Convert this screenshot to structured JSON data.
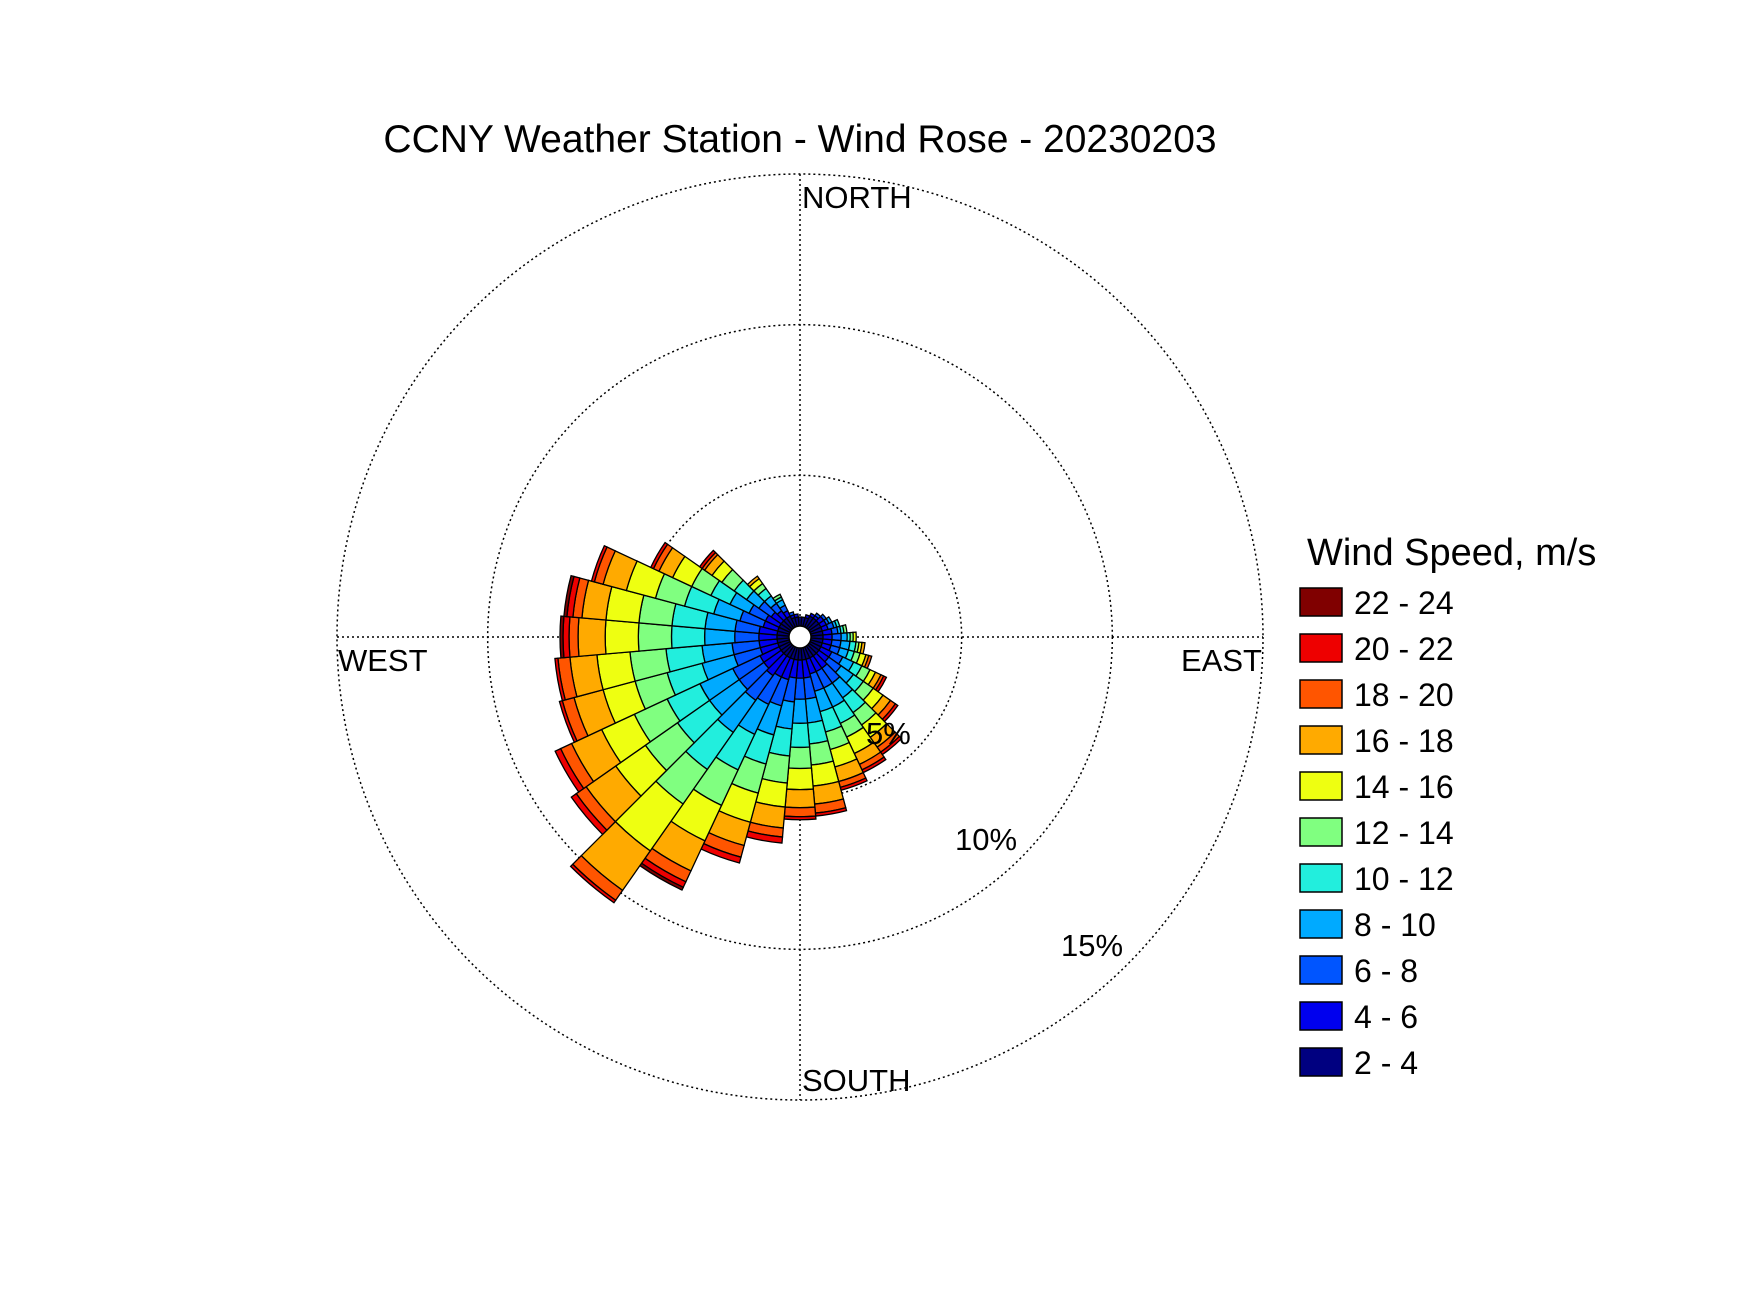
{
  "chart_data": {
    "type": "wind_rose",
    "title": "CCNY Weather Station - Wind Rose - 20230203",
    "direction_labels": [
      "NORTH",
      "EAST",
      "SOUTH",
      "WEST"
    ],
    "radial_ticks": [
      {
        "value": 5,
        "label": "5%"
      },
      {
        "value": 10,
        "label": "10%"
      },
      {
        "value": 15,
        "label": "15%"
      }
    ],
    "radial_max": 15,
    "grid": true,
    "legend": {
      "title": "Wind Speed, m/s",
      "placement": "right",
      "bins": [
        {
          "label": "22 - 24",
          "color": "#800000"
        },
        {
          "label": "20 - 22",
          "color": "#ee0000"
        },
        {
          "label": "18 - 20",
          "color": "#ff5500"
        },
        {
          "label": "16 - 18",
          "color": "#ffaa00"
        },
        {
          "label": "14 - 16",
          "color": "#eeff11"
        },
        {
          "label": "12 - 14",
          "color": "#80ff80"
        },
        {
          "label": "10 - 12",
          "color": "#22eedd"
        },
        {
          "label": "8 - 10",
          "color": "#00aaff"
        },
        {
          "label": "6 - 8",
          "color": "#0055ff"
        },
        {
          "label": "4 - 6",
          "color": "#0000ee"
        },
        {
          "label": "2 - 4",
          "color": "#000080"
        }
      ]
    },
    "stack_order": [
      "2 - 4",
      "4 - 6",
      "6 - 8",
      "8 - 10",
      "10 - 12",
      "12 - 14",
      "14 - 16",
      "16 - 18",
      "18 - 20",
      "20 - 22",
      "22 - 24"
    ],
    "sector_width_deg": 10,
    "sectors": [
      {
        "direction_deg": 0,
        "values": [
          0.3,
          0,
          0,
          0,
          0,
          0,
          0,
          0,
          0,
          0,
          0
        ]
      },
      {
        "direction_deg": 10,
        "values": [
          0.3,
          0,
          0,
          0,
          0,
          0,
          0,
          0,
          0,
          0,
          0
        ]
      },
      {
        "direction_deg": 20,
        "values": [
          0.3,
          0.1,
          0,
          0,
          0,
          0,
          0,
          0,
          0,
          0,
          0
        ]
      },
      {
        "direction_deg": 30,
        "values": [
          0.4,
          0.1,
          0,
          0,
          0,
          0,
          0,
          0,
          0,
          0,
          0
        ]
      },
      {
        "direction_deg": 40,
        "values": [
          0.4,
          0.1,
          0.1,
          0,
          0,
          0,
          0,
          0,
          0,
          0,
          0
        ]
      },
      {
        "direction_deg": 50,
        "values": [
          0.4,
          0.2,
          0.1,
          0,
          0,
          0,
          0,
          0,
          0,
          0,
          0
        ]
      },
      {
        "direction_deg": 60,
        "values": [
          0.4,
          0.2,
          0.1,
          0.1,
          0,
          0,
          0,
          0,
          0,
          0,
          0
        ]
      },
      {
        "direction_deg": 70,
        "values": [
          0.4,
          0.2,
          0.2,
          0.1,
          0.1,
          0,
          0,
          0,
          0,
          0,
          0
        ]
      },
      {
        "direction_deg": 80,
        "values": [
          0.4,
          0.3,
          0.2,
          0.1,
          0.1,
          0.1,
          0,
          0,
          0,
          0,
          0
        ]
      },
      {
        "direction_deg": 90,
        "values": [
          0.4,
          0.3,
          0.3,
          0.2,
          0.1,
          0.1,
          0.1,
          0,
          0,
          0,
          0
        ]
      },
      {
        "direction_deg": 100,
        "values": [
          0.4,
          0.3,
          0.3,
          0.3,
          0.2,
          0.1,
          0.1,
          0.1,
          0,
          0,
          0
        ]
      },
      {
        "direction_deg": 110,
        "values": [
          0.4,
          0.3,
          0.3,
          0.3,
          0.2,
          0.2,
          0.2,
          0.1,
          0.1,
          0,
          0
        ]
      },
      {
        "direction_deg": 120,
        "values": [
          0.4,
          0.4,
          0.4,
          0.4,
          0.3,
          0.3,
          0.2,
          0.2,
          0.1,
          0.1,
          0
        ]
      },
      {
        "direction_deg": 130,
        "values": [
          0.4,
          0.4,
          0.5,
          0.5,
          0.4,
          0.4,
          0.4,
          0.3,
          0.2,
          0.1,
          0
        ]
      },
      {
        "direction_deg": 140,
        "values": [
          0.4,
          0.5,
          0.6,
          0.6,
          0.6,
          0.5,
          0.5,
          0.4,
          0.2,
          0.1,
          0
        ]
      },
      {
        "direction_deg": 150,
        "values": [
          0.4,
          0.5,
          0.6,
          0.7,
          0.6,
          0.5,
          0.6,
          0.4,
          0.2,
          0.1,
          0
        ]
      },
      {
        "direction_deg": 160,
        "values": [
          0.4,
          0.5,
          0.6,
          0.7,
          0.7,
          0.6,
          0.6,
          0.5,
          0.2,
          0.1,
          0
        ]
      },
      {
        "direction_deg": 170,
        "values": [
          0.4,
          0.6,
          0.7,
          0.8,
          0.7,
          0.7,
          0.7,
          0.6,
          0.3,
          0.1,
          0
        ]
      },
      {
        "direction_deg": 180,
        "values": [
          0.4,
          0.6,
          0.7,
          0.8,
          0.8,
          0.7,
          0.7,
          0.6,
          0.3,
          0.1,
          0
        ]
      },
      {
        "direction_deg": 190,
        "values": [
          0.4,
          0.6,
          0.8,
          0.9,
          0.9,
          0.9,
          0.8,
          0.7,
          0.3,
          0.2,
          0
        ]
      },
      {
        "direction_deg": 200,
        "values": [
          0.4,
          0.7,
          0.9,
          1.0,
          1.0,
          1.0,
          1.0,
          0.8,
          0.4,
          0.2,
          0
        ]
      },
      {
        "direction_deg": 210,
        "values": [
          0.4,
          0.7,
          1.0,
          1.1,
          1.3,
          1.3,
          1.3,
          1.1,
          0.4,
          0.2,
          0.1
        ]
      },
      {
        "direction_deg": 220,
        "values": [
          0.4,
          0.8,
          1.0,
          1.3,
          1.5,
          1.4,
          1.9,
          1.6,
          0.4,
          0.1,
          0
        ]
      },
      {
        "direction_deg": 230,
        "values": [
          0.4,
          0.7,
          1.0,
          1.2,
          1.3,
          1.3,
          1.2,
          1.2,
          0.4,
          0.2,
          0
        ]
      },
      {
        "direction_deg": 240,
        "values": [
          0.4,
          0.7,
          1.0,
          1.2,
          1.2,
          1.2,
          1.2,
          1.1,
          0.4,
          0.2,
          0
        ]
      },
      {
        "direction_deg": 250,
        "values": [
          0.4,
          0.6,
          0.9,
          1.1,
          1.2,
          1.1,
          1.1,
          1.0,
          0.4,
          0.1,
          0
        ]
      },
      {
        "direction_deg": 260,
        "values": [
          0.4,
          0.6,
          0.9,
          1.0,
          1.2,
          1.2,
          1.1,
          0.9,
          0.4,
          0.1,
          0
        ]
      },
      {
        "direction_deg": 270,
        "values": [
          0.4,
          0.6,
          0.8,
          1.0,
          1.1,
          1.1,
          1.1,
          0.9,
          0.3,
          0.2,
          0.1
        ]
      },
      {
        "direction_deg": 280,
        "values": [
          0.4,
          0.6,
          0.8,
          1.0,
          1.1,
          1.1,
          1.1,
          0.8,
          0.3,
          0.2,
          0.1
        ]
      },
      {
        "direction_deg": 290,
        "values": [
          0.4,
          0.5,
          0.8,
          0.9,
          1.0,
          1.0,
          1.0,
          0.8,
          0.3,
          0.1,
          0
        ]
      },
      {
        "direction_deg": 300,
        "values": [
          0.4,
          0.5,
          0.6,
          0.7,
          0.7,
          0.7,
          0.7,
          0.5,
          0.2,
          0.1,
          0
        ]
      },
      {
        "direction_deg": 310,
        "values": [
          0.4,
          0.4,
          0.5,
          0.5,
          0.5,
          0.5,
          0.4,
          0.3,
          0.1,
          0.1,
          0
        ]
      },
      {
        "direction_deg": 320,
        "values": [
          0.4,
          0.3,
          0.3,
          0.3,
          0.3,
          0.2,
          0.2,
          0.1,
          0,
          0,
          0
        ]
      },
      {
        "direction_deg": 330,
        "values": [
          0.4,
          0.2,
          0.2,
          0.2,
          0.1,
          0.1,
          0,
          0,
          0,
          0,
          0
        ]
      },
      {
        "direction_deg": 340,
        "values": [
          0.3,
          0.1,
          0.1,
          0,
          0,
          0,
          0,
          0,
          0,
          0,
          0
        ]
      },
      {
        "direction_deg": 350,
        "values": [
          0.3,
          0.1,
          0,
          0,
          0,
          0,
          0,
          0,
          0,
          0,
          0
        ]
      }
    ]
  }
}
